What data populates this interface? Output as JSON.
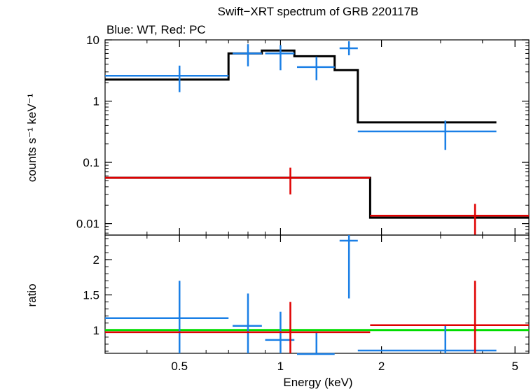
{
  "chart_data": [
    {
      "type": "scatter",
      "title": "Swift−XRT spectrum of GRB 220117B",
      "subtitle": "Blue: WT, Red: PC",
      "xlabel": "",
      "ylabel": "counts s⁻¹ keV⁻¹",
      "xscale": "log",
      "yscale": "log",
      "xlim": [
        0.3,
        5.5
      ],
      "ylim": [
        0.0065,
        10
      ],
      "yticks": [
        {
          "v": 10,
          "label": "10"
        },
        {
          "v": 1,
          "label": "1"
        },
        {
          "v": 0.1,
          "label": "0.1"
        },
        {
          "v": 0.01,
          "label": "0.01"
        }
      ],
      "colors": {
        "WT": "#1a7fe6",
        "PC": "#e00000",
        "model": "#000000"
      },
      "series": [
        {
          "name": "WT",
          "color": "#1a7fe6",
          "points": [
            {
              "x": 0.5,
              "xlo": 0.3,
              "xhi": 0.7,
              "y": 2.6,
              "ylo": 1.4,
              "yhi": 3.8
            },
            {
              "x": 0.8,
              "xlo": 0.72,
              "xhi": 0.88,
              "y": 6.0,
              "ylo": 3.7,
              "yhi": 8.5
            },
            {
              "x": 1.0,
              "xlo": 0.9,
              "xhi": 1.1,
              "y": 6.0,
              "ylo": 3.2,
              "yhi": 8.2
            },
            {
              "x": 1.28,
              "xlo": 1.12,
              "xhi": 1.45,
              "y": 3.6,
              "ylo": 2.2,
              "yhi": 5.3
            },
            {
              "x": 1.6,
              "xlo": 1.5,
              "xhi": 1.7,
              "y": 7.3,
              "ylo": 5.6,
              "yhi": 9.5
            },
            {
              "x": 3.1,
              "xlo": 1.7,
              "xhi": 4.4,
              "y": 0.32,
              "ylo": 0.16,
              "yhi": 0.48
            }
          ]
        },
        {
          "name": "PC",
          "color": "#e00000",
          "points": [
            {
              "x": 1.07,
              "xlo": 0.3,
              "xhi": 1.85,
              "y": 0.056,
              "ylo": 0.03,
              "yhi": 0.082
            },
            {
              "x": 3.8,
              "xlo": 1.85,
              "xhi": 5.5,
              "y": 0.0135,
              "ylo": 0.0066,
              "yhi": 0.021
            }
          ]
        }
      ],
      "models": [
        {
          "color": "#000000",
          "steps": [
            {
              "x1": 0.3,
              "x2": 0.7,
              "y": 2.25
            },
            {
              "x1": 0.7,
              "x2": 0.88,
              "y": 6.0
            },
            {
              "x1": 0.88,
              "x2": 1.1,
              "y": 6.7
            },
            {
              "x1": 1.1,
              "x2": 1.45,
              "y": 5.4
            },
            {
              "x1": 1.45,
              "x2": 1.7,
              "y": 3.2
            },
            {
              "x1": 1.7,
              "x2": 4.4,
              "y": 0.45
            }
          ]
        },
        {
          "color": "#000000",
          "steps": [
            {
              "x1": 0.3,
              "x2": 1.85,
              "y": 0.056
            },
            {
              "x1": 1.85,
              "x2": 5.5,
              "y": 0.0125
            }
          ]
        }
      ],
      "model_steps_colored": [
        {
          "color": "#e00000",
          "x1": 0.3,
          "x2": 1.85,
          "y": 0.056
        },
        {
          "color": "#e00000",
          "x1": 1.85,
          "x2": 5.5,
          "y": 0.0135
        }
      ]
    },
    {
      "type": "scatter",
      "title": "",
      "xlabel": "Energy (keV)",
      "ylabel": "ratio",
      "xscale": "log",
      "yscale": "linear",
      "xlim": [
        0.3,
        5.5
      ],
      "ylim": [
        0.67,
        2.35
      ],
      "xticks": [
        {
          "v": 0.5,
          "label": "0.5"
        },
        {
          "v": 1,
          "label": "1"
        },
        {
          "v": 2,
          "label": "2"
        },
        {
          "v": 5,
          "label": "5"
        }
      ],
      "yticks": [
        {
          "v": 1,
          "label": "1"
        },
        {
          "v": 1.5,
          "label": "1.5"
        },
        {
          "v": 2,
          "label": "2"
        }
      ],
      "reference_line": {
        "y": 1,
        "color": "#00dd00"
      },
      "series": [
        {
          "name": "WT",
          "color": "#1a7fe6",
          "points": [
            {
              "x": 0.5,
              "xlo": 0.3,
              "xhi": 0.7,
              "y": 1.17,
              "ylo": 0.67,
              "yhi": 1.7
            },
            {
              "x": 0.8,
              "xlo": 0.72,
              "xhi": 0.88,
              "y": 1.06,
              "ylo": 0.6,
              "yhi": 1.52
            },
            {
              "x": 1.0,
              "xlo": 0.9,
              "xhi": 1.1,
              "y": 0.86,
              "ylo": 0.46,
              "yhi": 1.26
            },
            {
              "x": 1.28,
              "xlo": 1.12,
              "xhi": 1.45,
              "y": 0.66,
              "ylo": 0.4,
              "yhi": 0.98
            },
            {
              "x": 1.6,
              "xlo": 1.5,
              "xhi": 1.7,
              "y": 2.27,
              "ylo": 1.45,
              "yhi": 2.35
            },
            {
              "x": 3.1,
              "xlo": 1.7,
              "xhi": 4.4,
              "y": 0.71,
              "ylo": 0.36,
              "yhi": 1.06
            }
          ]
        },
        {
          "name": "PC",
          "color": "#e00000",
          "points": [
            {
              "x": 1.07,
              "xlo": 0.3,
              "xhi": 1.85,
              "y": 0.97,
              "ylo": 0.55,
              "yhi": 1.4
            },
            {
              "x": 3.8,
              "xlo": 1.85,
              "xhi": 5.5,
              "y": 1.07,
              "ylo": 0.5,
              "yhi": 1.7
            }
          ]
        }
      ]
    }
  ]
}
